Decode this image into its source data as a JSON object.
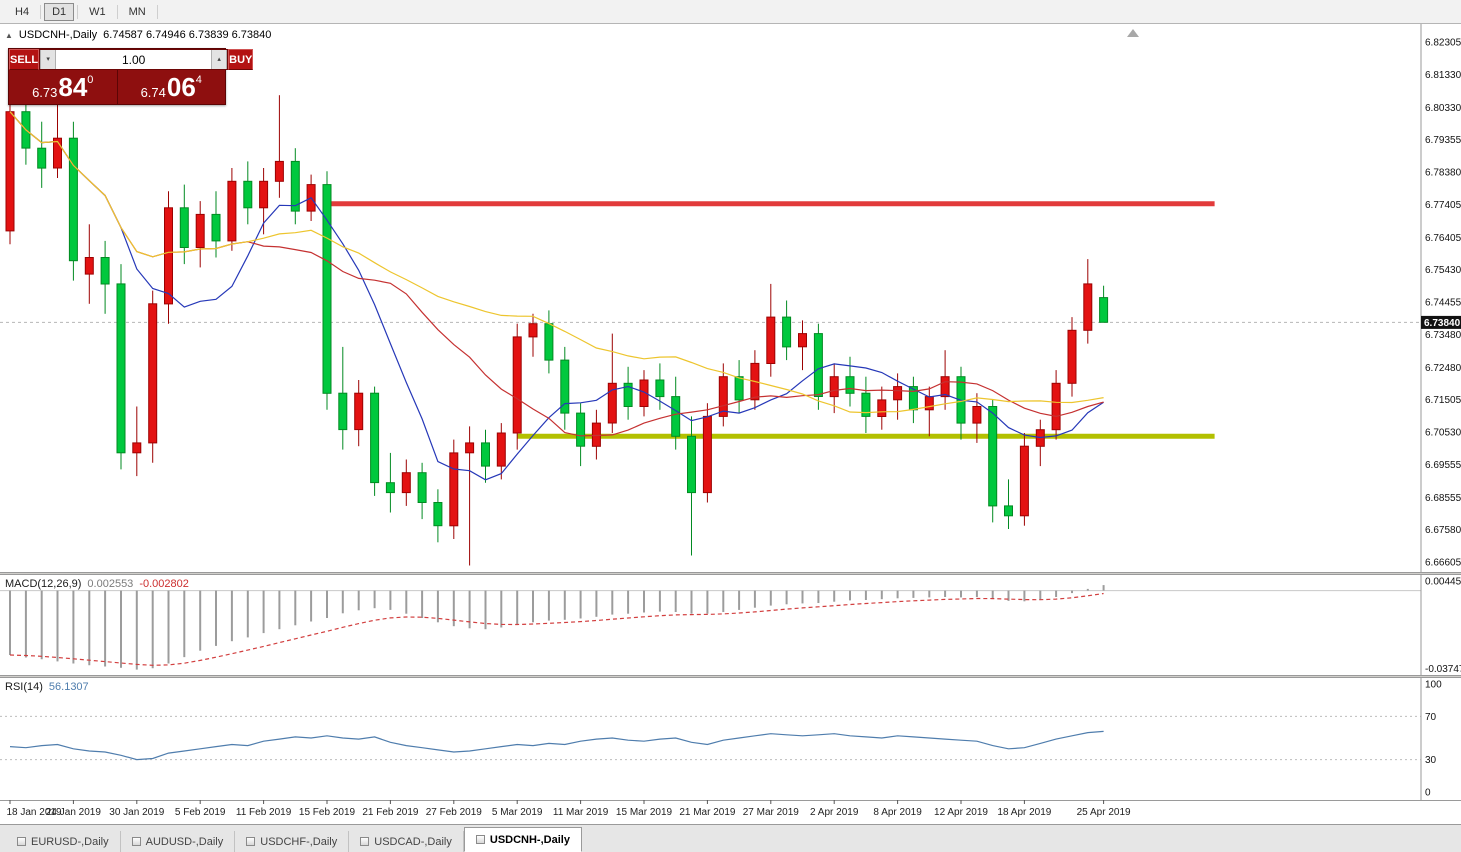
{
  "toolbar": {
    "timeframes": [
      {
        "label": "H4",
        "active": false
      },
      {
        "label": "D1",
        "active": true
      },
      {
        "label": "W1",
        "active": false
      },
      {
        "label": "MN",
        "active": false
      }
    ]
  },
  "chart": {
    "symbol_title": "USDCNH-,Daily",
    "ohlc_line": "6.74587 6.74946 6.73839 6.73840"
  },
  "trade_widget": {
    "sell_label": "SELL",
    "buy_label": "BUY",
    "volume": "1.00",
    "sell_price": {
      "prefix": "6.73",
      "big": "84",
      "sup": "0"
    },
    "buy_price": {
      "prefix": "6.74",
      "big": "06",
      "sup": "4"
    }
  },
  "chart_data": {
    "type": "candlestick",
    "symbol": "USDCNH-",
    "timeframe": "Daily",
    "current_price": "6.73840",
    "price_axis": [
      "6.82305",
      "6.81330",
      "6.80330",
      "6.79355",
      "6.78380",
      "6.77405",
      "6.76405",
      "6.75430",
      "6.74455",
      "6.73480",
      "6.72480",
      "6.71505",
      "6.70530",
      "6.69555",
      "6.68555",
      "6.67580",
      "6.66605"
    ],
    "colors": {
      "up": "#e31212",
      "up_border": "#9c0202",
      "down": "#00c83e",
      "down_border": "#028a22",
      "background": "#ffffff"
    },
    "moving_averages": [
      {
        "period": 8,
        "color": "#2638b8"
      },
      {
        "period": 16,
        "color": "#c53131"
      },
      {
        "period": 34,
        "color": "#edc52e"
      }
    ],
    "trendlines": [
      {
        "name": "resistance",
        "price": 6.7742,
        "color": "#e23b3b",
        "width": 5,
        "from_index": 20,
        "to_index": 76
      },
      {
        "name": "support",
        "price": 6.704,
        "color": "#b3c000",
        "width": 5,
        "from_index": 32,
        "to_index": 76
      }
    ],
    "candle_columns": [
      "date",
      "open",
      "high",
      "low",
      "close"
    ],
    "candles": [
      [
        "18 Jan",
        6.766,
        6.806,
        6.762,
        6.802
      ],
      [
        "21 Jan",
        6.802,
        6.808,
        6.786,
        6.791
      ],
      [
        "22 Jan",
        6.791,
        6.799,
        6.779,
        6.785
      ],
      [
        "23 Jan",
        6.785,
        6.807,
        6.782,
        6.794
      ],
      [
        "24 Jan",
        6.794,
        6.799,
        6.751,
        6.757
      ],
      [
        "25 Jan",
        6.753,
        6.768,
        6.744,
        6.758
      ],
      [
        "28 Jan",
        6.758,
        6.763,
        6.741,
        6.75
      ],
      [
        "29 Jan",
        6.75,
        6.756,
        6.694,
        6.699
      ],
      [
        "30 Jan",
        6.699,
        6.713,
        6.692,
        6.702
      ],
      [
        "31 Jan",
        6.702,
        6.748,
        6.696,
        6.744
      ],
      [
        "1 Feb",
        6.744,
        6.778,
        6.738,
        6.773
      ],
      [
        "4 Feb",
        6.773,
        6.78,
        6.756,
        6.761
      ],
      [
        "5 Feb",
        6.761,
        6.775,
        6.755,
        6.771
      ],
      [
        "6 Feb",
        6.771,
        6.778,
        6.758,
        6.763
      ],
      [
        "7 Feb",
        6.763,
        6.785,
        6.76,
        6.781
      ],
      [
        "8 Feb",
        6.781,
        6.787,
        6.768,
        6.773
      ],
      [
        "11 Feb",
        6.773,
        6.785,
        6.765,
        6.781
      ],
      [
        "12 Feb",
        6.781,
        6.807,
        6.776,
        6.787
      ],
      [
        "13 Feb",
        6.787,
        6.791,
        6.768,
        6.772
      ],
      [
        "14 Feb",
        6.772,
        6.783,
        6.769,
        6.78
      ],
      [
        "15 Feb",
        6.78,
        6.784,
        6.712,
        6.717
      ],
      [
        "18 Feb",
        6.717,
        6.731,
        6.7,
        6.706
      ],
      [
        "19 Feb",
        6.706,
        6.721,
        6.701,
        6.717
      ],
      [
        "20 Feb",
        6.717,
        6.719,
        6.686,
        6.69
      ],
      [
        "21 Feb",
        6.69,
        6.699,
        6.681,
        6.687
      ],
      [
        "22 Feb",
        6.687,
        6.697,
        6.683,
        6.693
      ],
      [
        "25 Feb",
        6.693,
        6.696,
        6.679,
        6.684
      ],
      [
        "26 Feb",
        6.684,
        6.688,
        6.672,
        6.677
      ],
      [
        "27 Feb",
        6.677,
        6.703,
        6.673,
        6.699
      ],
      [
        "28 Feb",
        6.699,
        6.707,
        6.665,
        6.702
      ],
      [
        "1 Mar",
        6.702,
        6.706,
        6.69,
        6.695
      ],
      [
        "4 Mar",
        6.695,
        6.708,
        6.691,
        6.705
      ],
      [
        "5 Mar",
        6.705,
        6.738,
        6.7,
        6.734
      ],
      [
        "6 Mar",
        6.734,
        6.741,
        6.728,
        6.738
      ],
      [
        "7 Mar",
        6.738,
        6.742,
        6.723,
        6.727
      ],
      [
        "8 Mar",
        6.727,
        6.731,
        6.706,
        6.711
      ],
      [
        "11 Mar",
        6.711,
        6.714,
        6.695,
        6.701
      ],
      [
        "12 Mar",
        6.701,
        6.712,
        6.697,
        6.708
      ],
      [
        "13 Mar",
        6.708,
        6.735,
        6.705,
        6.72
      ],
      [
        "14 Mar",
        6.72,
        6.725,
        6.709,
        6.713
      ],
      [
        "15 Mar",
        6.713,
        6.724,
        6.71,
        6.721
      ],
      [
        "18 Mar",
        6.721,
        6.726,
        6.712,
        6.716
      ],
      [
        "19 Mar",
        6.716,
        6.722,
        6.7,
        6.704
      ],
      [
        "20 Mar",
        6.704,
        6.71,
        6.668,
        6.687
      ],
      [
        "21 Mar",
        6.687,
        6.714,
        6.684,
        6.71
      ],
      [
        "22 Mar",
        6.71,
        6.726,
        6.707,
        6.722
      ],
      [
        "25 Mar",
        6.722,
        6.727,
        6.711,
        6.715
      ],
      [
        "26 Mar",
        6.715,
        6.73,
        6.712,
        6.726
      ],
      [
        "27 Mar",
        6.726,
        6.75,
        6.722,
        6.74
      ],
      [
        "28 Mar",
        6.74,
        6.745,
        6.727,
        6.731
      ],
      [
        "29 Mar",
        6.731,
        6.739,
        6.724,
        6.735
      ],
      [
        "1 Apr",
        6.735,
        6.738,
        6.712,
        6.716
      ],
      [
        "2 Apr",
        6.716,
        6.726,
        6.711,
        6.722
      ],
      [
        "3 Apr",
        6.722,
        6.728,
        6.713,
        6.717
      ],
      [
        "4 Apr",
        6.717,
        6.722,
        6.705,
        6.71
      ],
      [
        "5 Apr",
        6.71,
        6.719,
        6.706,
        6.715
      ],
      [
        "8 Apr",
        6.715,
        6.723,
        6.709,
        6.719
      ],
      [
        "9 Apr",
        6.719,
        6.722,
        6.708,
        6.712
      ],
      [
        "10 Apr",
        6.712,
        6.719,
        6.704,
        6.716
      ],
      [
        "11 Apr",
        6.716,
        6.73,
        6.712,
        6.722
      ],
      [
        "12 Apr",
        6.722,
        6.725,
        6.703,
        6.708
      ],
      [
        "15 Apr",
        6.708,
        6.717,
        6.702,
        6.713
      ],
      [
        "16 Apr",
        6.713,
        6.715,
        6.678,
        6.683
      ],
      [
        "17 Apr",
        6.683,
        6.691,
        6.676,
        6.68
      ],
      [
        "18 Apr",
        6.68,
        6.705,
        6.677,
        6.701
      ],
      [
        "19 Apr",
        6.701,
        6.709,
        6.695,
        6.706
      ],
      [
        "22 Apr",
        6.706,
        6.724,
        6.703,
        6.72
      ],
      [
        "23 Apr",
        6.72,
        6.74,
        6.716,
        6.736
      ],
      [
        "24 Apr",
        6.736,
        6.7575,
        6.732,
        6.75
      ],
      [
        "25 Apr",
        6.74587,
        6.74946,
        6.73839,
        6.7384
      ]
    ],
    "x_axis": [
      {
        "index": 0,
        "label": "18 Jan 2019"
      },
      {
        "index": 4,
        "label": "24 Jan 2019"
      },
      {
        "index": 8,
        "label": "30 Jan 2019"
      },
      {
        "index": 12,
        "label": "5 Feb 2019"
      },
      {
        "index": 16,
        "label": "11 Feb 2019"
      },
      {
        "index": 20,
        "label": "15 Feb 2019"
      },
      {
        "index": 24,
        "label": "21 Feb 2019"
      },
      {
        "index": 28,
        "label": "27 Feb 2019"
      },
      {
        "index": 32,
        "label": "5 Mar 2019"
      },
      {
        "index": 36,
        "label": "11 Mar 2019"
      },
      {
        "index": 40,
        "label": "15 Mar 2019"
      },
      {
        "index": 44,
        "label": "21 Mar 2019"
      },
      {
        "index": 48,
        "label": "27 Mar 2019"
      },
      {
        "index": 52,
        "label": "2 Apr 2019"
      },
      {
        "index": 56,
        "label": "8 Apr 2019"
      },
      {
        "index": 60,
        "label": "12 Apr 2019"
      },
      {
        "index": 64,
        "label": "18 Apr 2019"
      },
      {
        "index": 69,
        "label": "25 Apr 2019"
      }
    ],
    "indicators": {
      "macd": {
        "label": "MACD(12,26,9)",
        "value": "0.002553",
        "signal_value": "-0.002802",
        "axis_top": "0.004459",
        "axis_bottom": "-0.037475",
        "histogram_color": "#9c9c9c",
        "signal_color": "#d23f3f",
        "histogram": [
          -0.03,
          -0.0312,
          -0.032,
          -0.033,
          -0.034,
          -0.0348,
          -0.0354,
          -0.036,
          -0.0368,
          -0.0362,
          -0.034,
          -0.031,
          -0.028,
          -0.0258,
          -0.0236,
          -0.0218,
          -0.0198,
          -0.018,
          -0.0162,
          -0.0144,
          -0.0128,
          -0.0106,
          -0.0092,
          -0.0082,
          -0.009,
          -0.0108,
          -0.0128,
          -0.0148,
          -0.0166,
          -0.0176,
          -0.018,
          -0.0172,
          -0.016,
          -0.0148,
          -0.014,
          -0.0136,
          -0.013,
          -0.0122,
          -0.0112,
          -0.0108,
          -0.0102,
          -0.0098,
          -0.01,
          -0.0108,
          -0.0108,
          -0.01,
          -0.009,
          -0.008,
          -0.007,
          -0.0064,
          -0.006,
          -0.0058,
          -0.0052,
          -0.0046,
          -0.0044,
          -0.004,
          -0.0036,
          -0.0034,
          -0.0032,
          -0.003,
          -0.0032,
          -0.003,
          -0.0038,
          -0.0048,
          -0.005,
          -0.0044,
          -0.003,
          -0.0012,
          0.0008,
          0.002553
        ]
      },
      "rsi": {
        "label": "RSI(14)",
        "value": "56.1307",
        "color": "#4f7dad",
        "levels": [
          "100",
          "70",
          "30",
          "0"
        ],
        "dashed_levels": [
          70,
          30
        ],
        "values": [
          42,
          41,
          43,
          44,
          40,
          38,
          37,
          34,
          30,
          31,
          36,
          38,
          40,
          42,
          44,
          43,
          47,
          49,
          51,
          50,
          52,
          50,
          49,
          51,
          46,
          43,
          41,
          39,
          37,
          38,
          40,
          42,
          44,
          43,
          45,
          44,
          47,
          49,
          50,
          48,
          47,
          49,
          50,
          46,
          44,
          48,
          50,
          52,
          54,
          53,
          52,
          53,
          54,
          52,
          51,
          50,
          52,
          51,
          50,
          49,
          48,
          47,
          43,
          40,
          41,
          45,
          49,
          52,
          55,
          56.13
        ]
      }
    }
  },
  "tabs": {
    "items": [
      "EURUSD-,Daily",
      "AUDUSD-,Daily",
      "USDCHF-,Daily",
      "USDCAD-,Daily",
      "USDCNH-,Daily"
    ],
    "active_index": 4
  }
}
